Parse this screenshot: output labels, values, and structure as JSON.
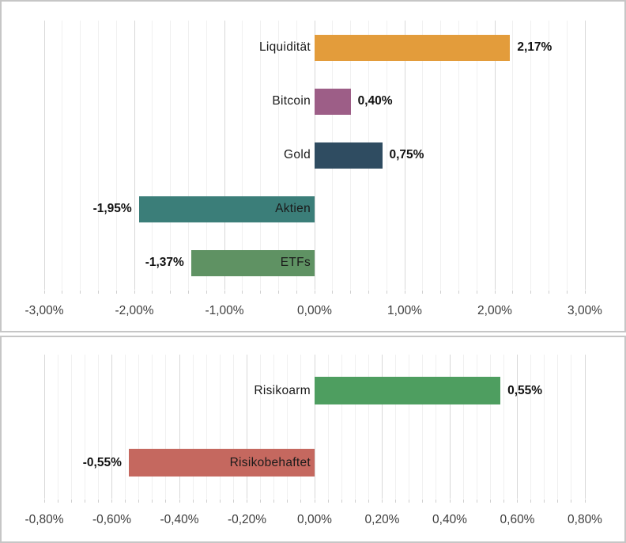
{
  "chart_data": [
    {
      "type": "bar",
      "orientation": "horizontal",
      "title": "",
      "xlabel": "",
      "ylabel": "",
      "categories": [
        "Liquidität",
        "Bitcoin",
        "Gold",
        "Aktien",
        "ETFs"
      ],
      "values": [
        2.17,
        0.4,
        0.75,
        -1.95,
        -1.37
      ],
      "data_labels": [
        "2,17%",
        "0,40%",
        "0,75%",
        "-1,95%",
        "-1,37%"
      ],
      "bar_colors": [
        "#e39c3b",
        "#9d5e87",
        "#2f4c61",
        "#3b7e79",
        "#5f9263"
      ],
      "xlim": [
        -3,
        3
      ],
      "major_unit": 1.0,
      "minor_unit": 0.2,
      "x_tick_labels": [
        "-3,00%",
        "-2,00%",
        "-1,00%",
        "0,00%",
        "1,00%",
        "2,00%",
        "3,00%"
      ],
      "grid": true,
      "legend": false
    },
    {
      "type": "bar",
      "orientation": "horizontal",
      "title": "",
      "xlabel": "",
      "ylabel": "",
      "categories": [
        "Risikoarm",
        "Risikobehaftet"
      ],
      "values": [
        0.55,
        -0.55
      ],
      "data_labels": [
        "0,55%",
        "-0,55%"
      ],
      "bar_colors": [
        "#4e9e60",
        "#c5685f"
      ],
      "xlim": [
        -0.8,
        0.8
      ],
      "major_unit": 0.2,
      "minor_unit": 0.04,
      "x_tick_labels": [
        "-0,80%",
        "-0,60%",
        "-0,40%",
        "-0,20%",
        "0,00%",
        "0,20%",
        "0,40%",
        "0,60%",
        "0,80%"
      ],
      "grid": true,
      "legend": false
    }
  ]
}
